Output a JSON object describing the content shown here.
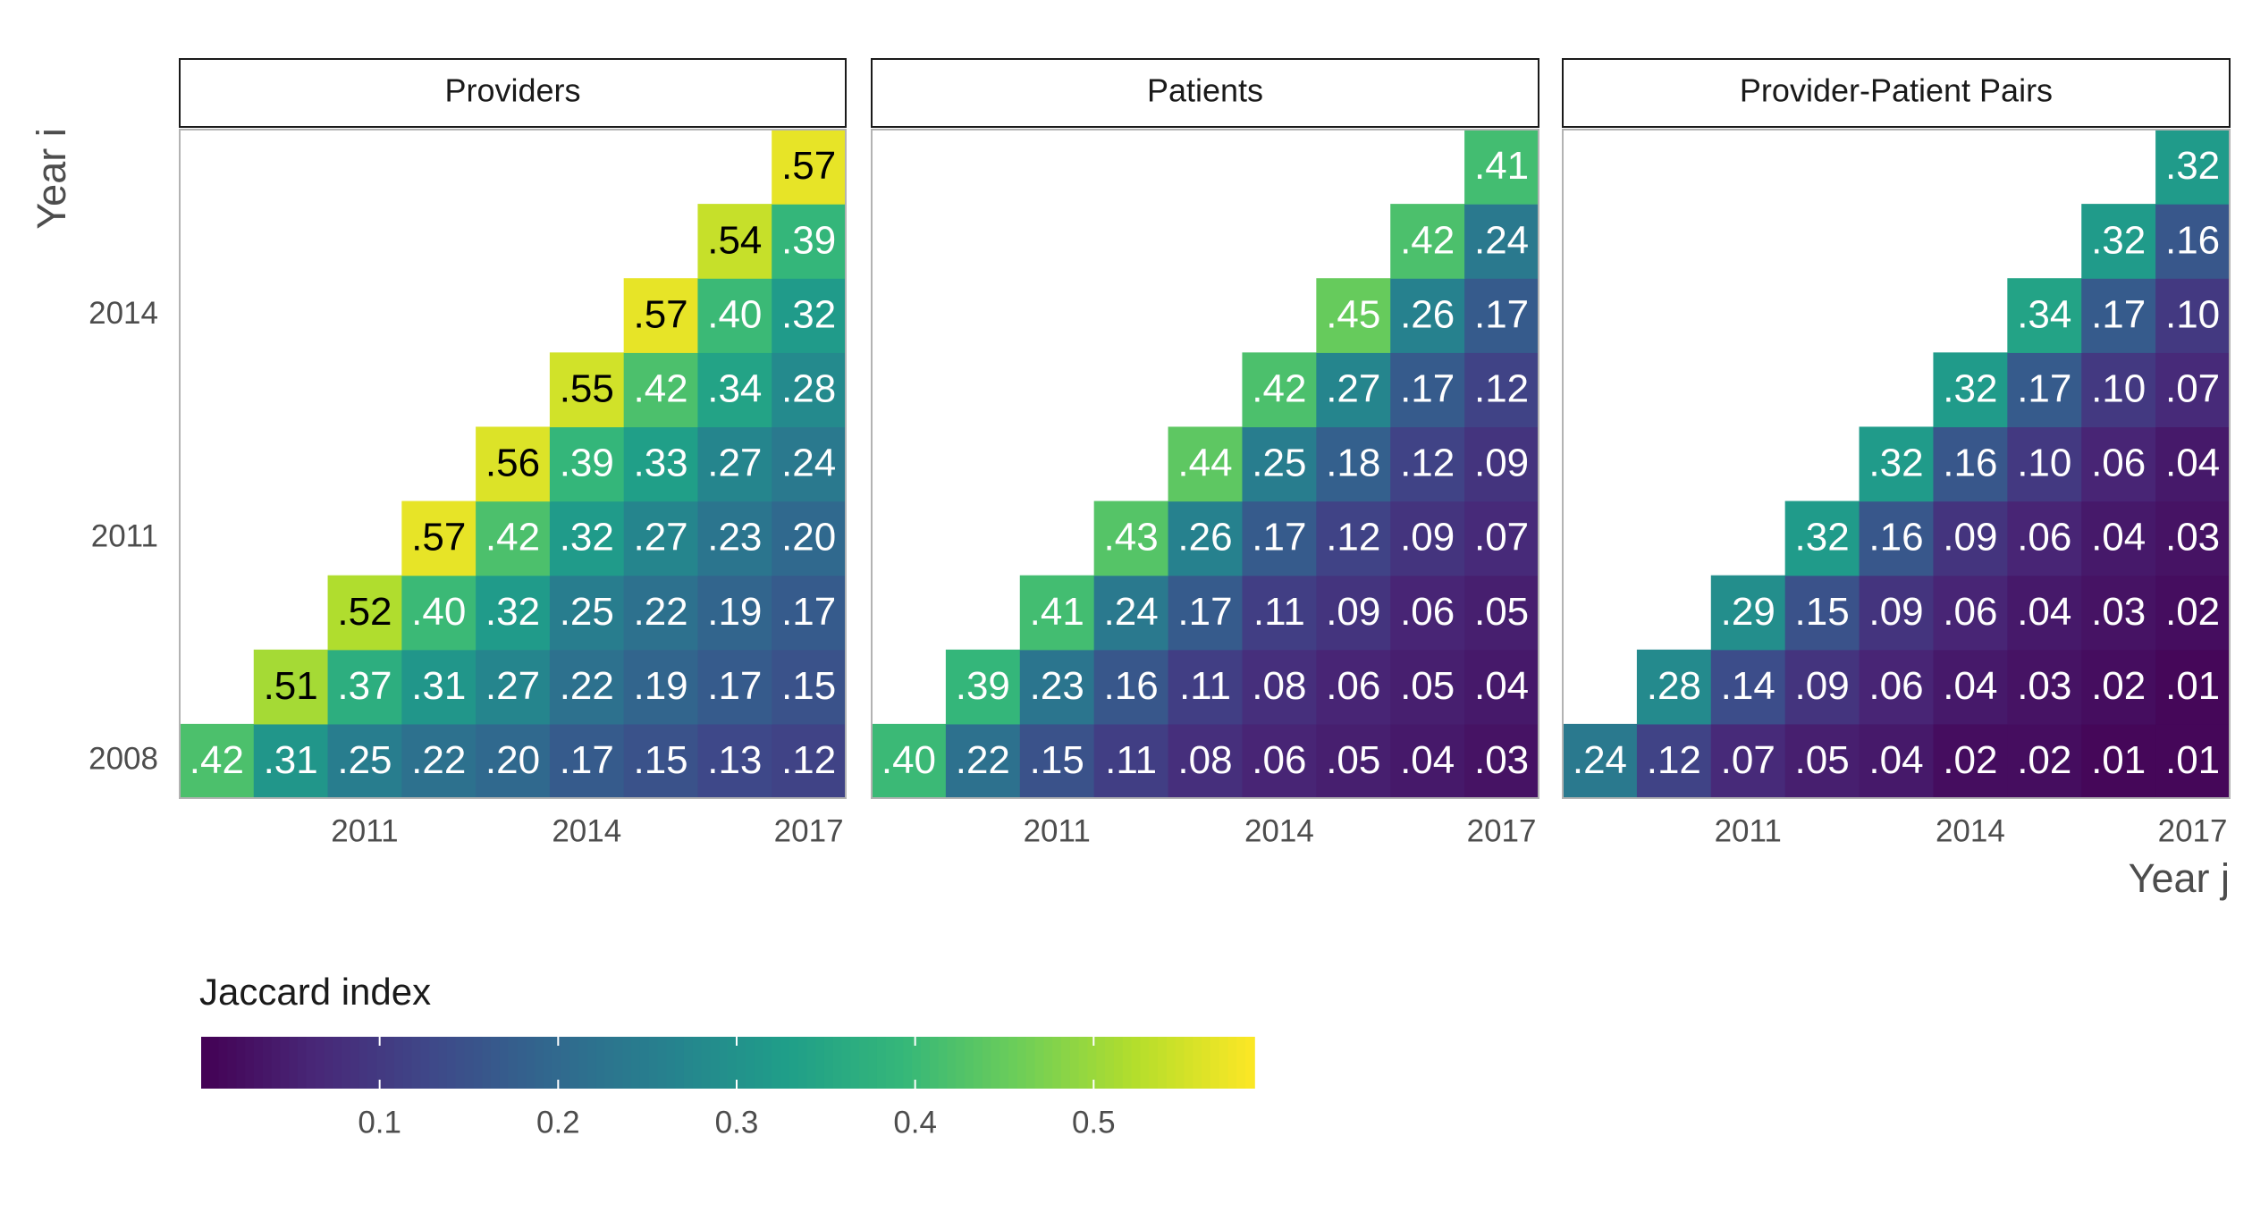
{
  "chart_data": {
    "type": "heatmap",
    "x_label": "Year j",
    "y_label": "Year i",
    "x": [
      2009,
      2010,
      2011,
      2012,
      2013,
      2014,
      2015,
      2016,
      2017
    ],
    "y": [
      2008,
      2009,
      2010,
      2011,
      2012,
      2013,
      2014,
      2015,
      2016
    ],
    "xlim": [
      2008.5,
      2017.5
    ],
    "ylim": [
      2007.5,
      2016.5
    ],
    "xticks": [
      2011,
      2014,
      2017
    ],
    "yticks": [
      2008,
      2011,
      2014
    ],
    "colormap": "viridis",
    "facets": [
      {
        "title": "Providers",
        "values": [
          [
            0.42,
            0.31,
            0.25,
            0.22,
            0.2,
            0.17,
            0.15,
            0.13,
            0.12
          ],
          [
            null,
            0.51,
            0.37,
            0.31,
            0.27,
            0.22,
            0.19,
            0.17,
            0.15
          ],
          [
            null,
            null,
            0.52,
            0.4,
            0.32,
            0.25,
            0.22,
            0.19,
            0.17
          ],
          [
            null,
            null,
            null,
            0.57,
            0.42,
            0.32,
            0.27,
            0.23,
            0.2
          ],
          [
            null,
            null,
            null,
            null,
            0.56,
            0.39,
            0.33,
            0.27,
            0.24
          ],
          [
            null,
            null,
            null,
            null,
            null,
            0.55,
            0.42,
            0.34,
            0.28
          ],
          [
            null,
            null,
            null,
            null,
            null,
            null,
            0.57,
            0.4,
            0.32
          ],
          [
            null,
            null,
            null,
            null,
            null,
            null,
            null,
            0.54,
            0.39
          ],
          [
            null,
            null,
            null,
            null,
            null,
            null,
            null,
            null,
            0.57
          ]
        ],
        "value_labels": [
          [
            ".42",
            ".31",
            ".25",
            ".22",
            ".20",
            ".17",
            ".15",
            ".13",
            ".12"
          ],
          [
            null,
            ".51",
            ".37",
            ".31",
            ".27",
            ".22",
            ".19",
            ".17",
            ".15"
          ],
          [
            null,
            null,
            ".52",
            ".40",
            ".32",
            ".25",
            ".22",
            ".19",
            ".17"
          ],
          [
            null,
            null,
            null,
            ".57",
            ".42",
            ".32",
            ".27",
            ".23",
            ".20"
          ],
          [
            null,
            null,
            null,
            null,
            ".56",
            ".39",
            ".33",
            ".27",
            ".24"
          ],
          [
            null,
            null,
            null,
            null,
            null,
            ".55",
            ".42",
            ".34",
            ".28"
          ],
          [
            null,
            null,
            null,
            null,
            null,
            null,
            ".57",
            ".40",
            ".32"
          ],
          [
            null,
            null,
            null,
            null,
            null,
            null,
            null,
            ".54",
            ".39"
          ],
          [
            null,
            null,
            null,
            null,
            null,
            null,
            null,
            null,
            ".57"
          ]
        ]
      },
      {
        "title": "Patients",
        "values": [
          [
            0.4,
            0.22,
            0.15,
            0.11,
            0.08,
            0.06,
            0.05,
            0.04,
            0.03
          ],
          [
            null,
            0.39,
            0.23,
            0.16,
            0.11,
            0.08,
            0.06,
            0.05,
            0.04
          ],
          [
            null,
            null,
            0.41,
            0.24,
            0.17,
            0.11,
            0.09,
            0.06,
            0.05
          ],
          [
            null,
            null,
            null,
            0.43,
            0.26,
            0.17,
            0.12,
            0.09,
            0.07
          ],
          [
            null,
            null,
            null,
            null,
            0.44,
            0.25,
            0.18,
            0.12,
            0.09
          ],
          [
            null,
            null,
            null,
            null,
            null,
            0.42,
            0.27,
            0.17,
            0.12
          ],
          [
            null,
            null,
            null,
            null,
            null,
            null,
            0.45,
            0.26,
            0.17
          ],
          [
            null,
            null,
            null,
            null,
            null,
            null,
            null,
            0.42,
            0.24
          ],
          [
            null,
            null,
            null,
            null,
            null,
            null,
            null,
            null,
            0.41
          ]
        ],
        "value_labels": [
          [
            ".40",
            ".22",
            ".15",
            ".11",
            ".08",
            ".06",
            ".05",
            ".04",
            ".03"
          ],
          [
            null,
            ".39",
            ".23",
            ".16",
            ".11",
            ".08",
            ".06",
            ".05",
            ".04"
          ],
          [
            null,
            null,
            ".41",
            ".24",
            ".17",
            ".11",
            ".09",
            ".06",
            ".05"
          ],
          [
            null,
            null,
            null,
            ".43",
            ".26",
            ".17",
            ".12",
            ".09",
            ".07"
          ],
          [
            null,
            null,
            null,
            null,
            ".44",
            ".25",
            ".18",
            ".12",
            ".09"
          ],
          [
            null,
            null,
            null,
            null,
            null,
            ".42",
            ".27",
            ".17",
            ".12"
          ],
          [
            null,
            null,
            null,
            null,
            null,
            null,
            ".45",
            ".26",
            ".17"
          ],
          [
            null,
            null,
            null,
            null,
            null,
            null,
            null,
            ".42",
            ".24"
          ],
          [
            null,
            null,
            null,
            null,
            null,
            null,
            null,
            null,
            ".41"
          ]
        ]
      },
      {
        "title": "Provider-Patient Pairs",
        "values": [
          [
            0.24,
            0.12,
            0.07,
            0.05,
            0.04,
            0.02,
            0.02,
            0.01,
            0.01
          ],
          [
            null,
            0.28,
            0.14,
            0.09,
            0.06,
            0.04,
            0.03,
            0.02,
            0.01
          ],
          [
            null,
            null,
            0.29,
            0.15,
            0.09,
            0.06,
            0.04,
            0.03,
            0.02
          ],
          [
            null,
            null,
            null,
            0.32,
            0.16,
            0.09,
            0.06,
            0.04,
            0.03
          ],
          [
            null,
            null,
            null,
            null,
            0.32,
            0.16,
            0.1,
            0.06,
            0.04
          ],
          [
            null,
            null,
            null,
            null,
            null,
            0.32,
            0.17,
            0.1,
            0.07
          ],
          [
            null,
            null,
            null,
            null,
            null,
            null,
            0.34,
            0.17,
            0.1
          ],
          [
            null,
            null,
            null,
            null,
            null,
            null,
            null,
            0.32,
            0.16
          ],
          [
            null,
            null,
            null,
            null,
            null,
            null,
            null,
            null,
            0.32
          ]
        ],
        "value_labels": [
          [
            ".24",
            ".12",
            ".07",
            ".05",
            ".04",
            ".02",
            ".02",
            ".01",
            ".01"
          ],
          [
            null,
            ".28",
            ".14",
            ".09",
            ".06",
            ".04",
            ".03",
            ".02",
            ".01"
          ],
          [
            null,
            null,
            ".29",
            ".15",
            ".09",
            ".06",
            ".04",
            ".03",
            ".02"
          ],
          [
            null,
            null,
            null,
            ".32",
            ".16",
            ".09",
            ".06",
            ".04",
            ".03"
          ],
          [
            null,
            null,
            null,
            null,
            ".32",
            ".16",
            ".10",
            ".06",
            ".04"
          ],
          [
            null,
            null,
            null,
            null,
            null,
            ".32",
            ".17",
            ".10",
            ".07"
          ],
          [
            null,
            null,
            null,
            null,
            null,
            null,
            ".34",
            ".17",
            ".10"
          ],
          [
            null,
            null,
            null,
            null,
            null,
            null,
            null,
            ".32",
            ".16"
          ],
          [
            null,
            null,
            null,
            null,
            null,
            null,
            null,
            null,
            ".32"
          ]
        ]
      }
    ],
    "colorbar": {
      "title": "Jaccard index",
      "lim": [
        0,
        0.59
      ],
      "ticks": [
        0.1,
        0.2,
        0.3,
        0.4,
        0.5
      ]
    }
  }
}
